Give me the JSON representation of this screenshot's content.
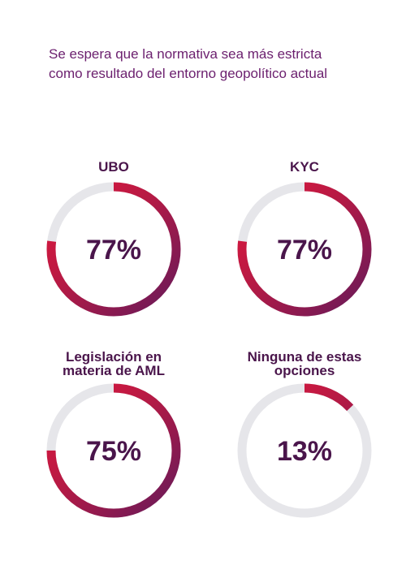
{
  "headline": "Se espera que la normativa sea más estricta como resultado del entorno geopolítico actual",
  "colors": {
    "text": "#6b1f6e",
    "title": "#4a154b",
    "value": "#4a154b",
    "track": "#e6e6ea",
    "gradient_start": "#e8173a",
    "gradient_end": "#5e1a5c"
  },
  "chart_data": [
    {
      "type": "gauge",
      "title": "UBO",
      "value": 77,
      "label": "77%",
      "max": 100
    },
    {
      "type": "gauge",
      "title": "KYC",
      "value": 77,
      "label": "77%",
      "max": 100
    },
    {
      "type": "gauge",
      "title": "Legislación en\nmateria de AML",
      "value": 75,
      "label": "75%",
      "max": 100
    },
    {
      "type": "gauge",
      "title": "Ninguna de estas\nopciones",
      "value": 13,
      "label": "13%",
      "max": 100
    }
  ]
}
